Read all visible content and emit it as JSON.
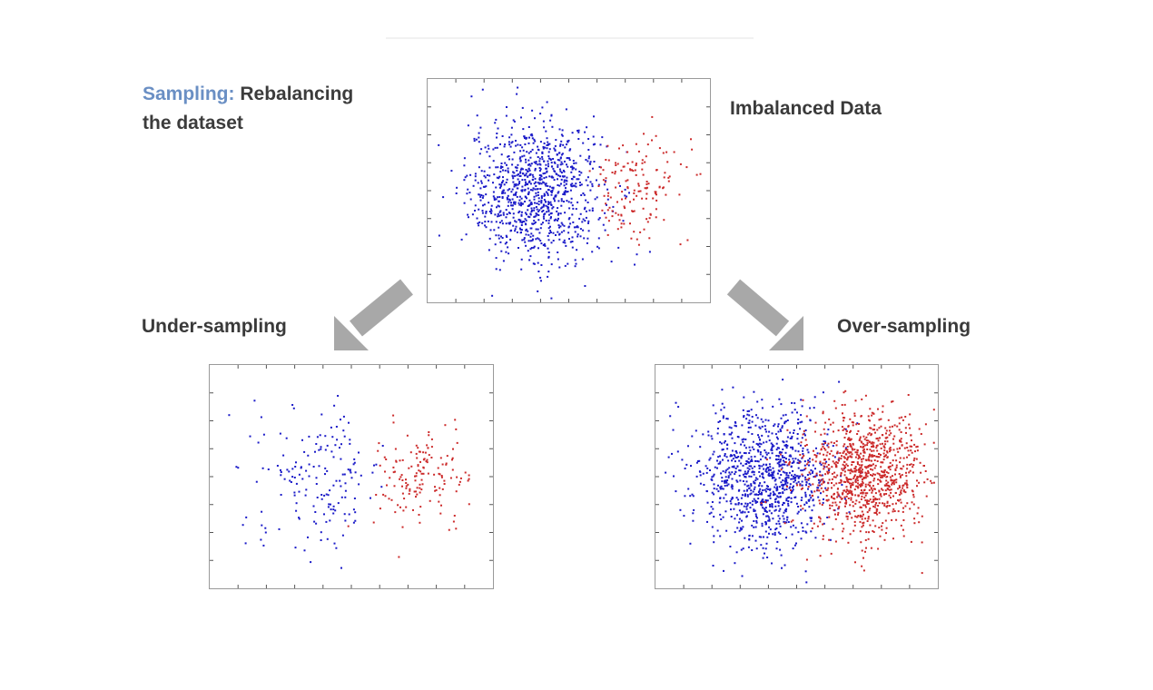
{
  "title": {
    "accent": "Sampling:",
    "rest_line1": "Rebalancing",
    "rest_line2": "the dataset"
  },
  "labels": {
    "top": "Imbalanced Data",
    "left": "Under-sampling",
    "right": "Over-sampling"
  },
  "colors": {
    "majority": "#1a1ac8",
    "minority": "#cc2b2b",
    "arrow": "#a8a8a8",
    "accent": "#6a8fc4"
  },
  "chart_data": [
    {
      "id": "imbalanced",
      "type": "scatter",
      "series": [
        {
          "class": "majority",
          "count": 1000,
          "center": [
            0,
            0
          ],
          "spread": 1.0
        },
        {
          "class": "minority",
          "count": 150,
          "center": [
            3.0,
            0.1
          ],
          "spread": 0.7
        }
      ]
    },
    {
      "id": "under",
      "type": "scatter",
      "series": [
        {
          "class": "majority",
          "count": 170,
          "center": [
            0,
            0
          ],
          "spread": 1.0
        },
        {
          "class": "minority",
          "count": 150,
          "center": [
            3.0,
            0.1
          ],
          "spread": 0.7
        }
      ]
    },
    {
      "id": "over",
      "type": "scatter",
      "series": [
        {
          "class": "majority",
          "count": 1000,
          "center": [
            0,
            0
          ],
          "spread": 1.0
        },
        {
          "class": "minority",
          "count": 1000,
          "center": [
            3.0,
            0.1
          ],
          "spread": 0.9
        }
      ]
    }
  ]
}
